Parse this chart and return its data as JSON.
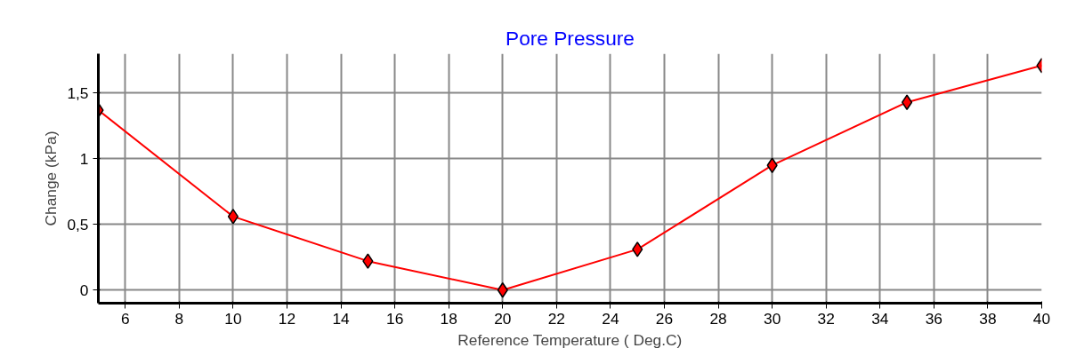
{
  "chart_data": {
    "type": "line",
    "title": "Pore Pressure",
    "xlabel": "Reference Temperature ( Deg.C)",
    "ylabel": "Change (kPa)",
    "x": [
      5,
      10,
      15,
      20,
      25,
      30,
      35,
      40
    ],
    "series": [
      {
        "color": "#ff0000",
        "values": [
          1.37,
          0.56,
          0.22,
          0.0,
          0.31,
          0.95,
          1.43,
          1.71
        ]
      }
    ],
    "xlim": [
      5,
      40
    ],
    "xticks": [
      6,
      8,
      10,
      12,
      14,
      16,
      18,
      20,
      22,
      24,
      26,
      28,
      30,
      32,
      34,
      36,
      38,
      40
    ],
    "ylim": [
      -0.1,
      1.8
    ],
    "yticks": [
      0,
      {
        "value": 0.5,
        "label": "0,5"
      },
      1,
      {
        "value": 1.5,
        "label": "1,5"
      }
    ],
    "grid": true,
    "marker": "diamond",
    "line_style": "solid"
  }
}
